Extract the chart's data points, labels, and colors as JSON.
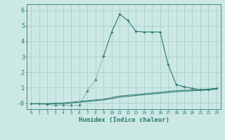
{
  "xlabel": "Humidex (Indice chaleur)",
  "background_color": "#cce8e5",
  "grid_color": "#aacfcc",
  "line_color": "#2a7a6e",
  "x_values": [
    0,
    1,
    2,
    3,
    4,
    5,
    6,
    7,
    8,
    9,
    10,
    11,
    12,
    13,
    14,
    15,
    16,
    17,
    18,
    19,
    20,
    21,
    22,
    23
  ],
  "series1": [
    -0.05,
    -0.05,
    -0.1,
    -0.15,
    -0.15,
    -0.15,
    -0.15,
    0.8,
    1.5,
    3.05,
    4.6,
    5.75,
    5.35,
    4.65,
    4.6,
    4.6,
    4.6,
    2.5,
    1.2,
    1.05,
    0.95,
    0.85,
    0.85,
    0.95
  ],
  "series2": [
    -0.05,
    -0.05,
    -0.05,
    -0.0,
    0.0,
    0.05,
    0.1,
    0.15,
    0.2,
    0.25,
    0.35,
    0.45,
    0.5,
    0.55,
    0.6,
    0.65,
    0.7,
    0.75,
    0.8,
    0.83,
    0.85,
    0.87,
    0.9,
    0.95
  ],
  "series3": [
    -0.05,
    -0.05,
    -0.05,
    -0.05,
    -0.05,
    0.0,
    0.05,
    0.1,
    0.15,
    0.2,
    0.28,
    0.38,
    0.43,
    0.48,
    0.53,
    0.58,
    0.63,
    0.68,
    0.73,
    0.76,
    0.79,
    0.82,
    0.85,
    0.9
  ],
  "ylim": [
    -0.4,
    6.4
  ],
  "yticks": [
    0,
    1,
    2,
    3,
    4,
    5,
    6
  ],
  "ytick_labels": [
    "-0",
    "1",
    "2",
    "3",
    "4",
    "5",
    "6"
  ],
  "xlim": [
    -0.5,
    23.5
  ],
  "figsize": [
    3.2,
    2.0
  ],
  "dpi": 100
}
